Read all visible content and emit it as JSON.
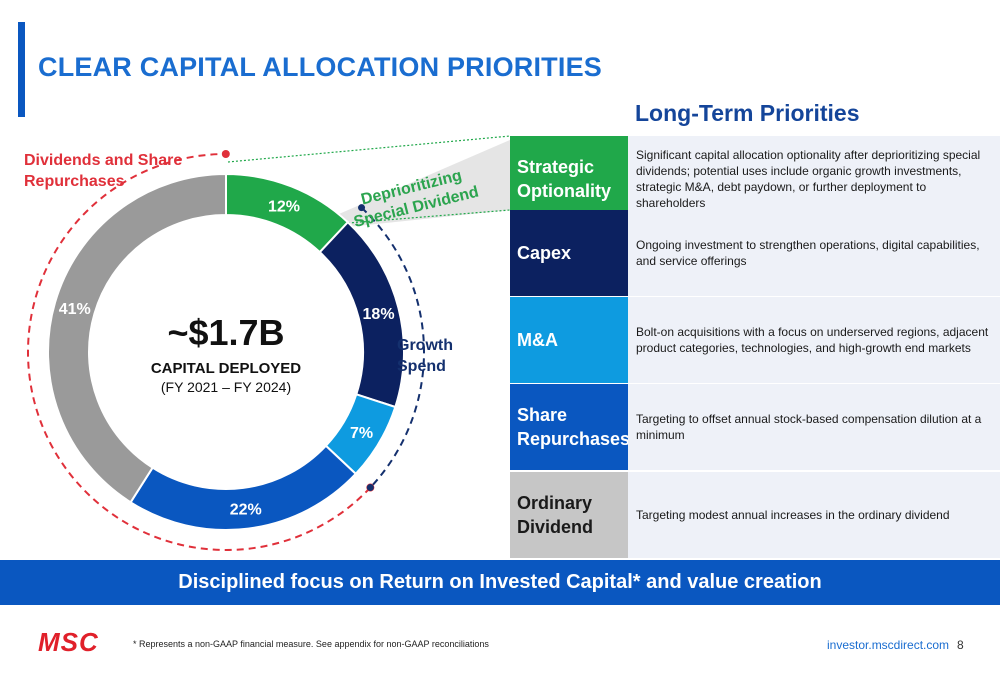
{
  "title": "CLEAR CAPITAL ALLOCATION PRIORITIES",
  "long_term_heading": "Long-Term Priorities",
  "center": {
    "amount": "~$1.7B",
    "label": "CAPITAL DEPLOYED",
    "period": "(FY 2021 – FY 2024)"
  },
  "callouts": {
    "dividends_line1": "Dividends and Share",
    "dividends_line2": "Repurchases",
    "growth_line1": "Growth",
    "growth_line2": "Spend",
    "deprio_line1": "Deprioritizing",
    "deprio_line2": "Special Dividend"
  },
  "priorities": [
    {
      "label": "Strategic Optionality",
      "desc": "Significant capital allocation optionality after deprioritizing special dividends; potential uses include organic growth investments, strategic M&A, debt paydown, or further deployment to shareholders",
      "color": "#20a84a",
      "text_color": "#ffffff"
    },
    {
      "label": "Capex",
      "desc": "Ongoing investment to strengthen operations, digital capabilities, and service offerings",
      "color": "#0c2160",
      "text_color": "#ffffff"
    },
    {
      "label": "M&A",
      "desc": "Bolt-on acquisitions with a focus on underserved regions, adjacent product categories, technologies, and high-growth end markets",
      "color": "#0e9be0",
      "text_color": "#ffffff"
    },
    {
      "label": "Share Repurchases",
      "desc": "Targeting to offset annual stock-based compensation dilution at a minimum",
      "color": "#0a57c0",
      "text_color": "#ffffff"
    },
    {
      "label": "Ordinary Dividend",
      "desc": "Targeting modest annual increases in the ordinary dividend",
      "color": "#c6c6c6",
      "text_color": "#1a1a1a"
    }
  ],
  "banner": "Disciplined focus on Return on Invested Capital* and value creation",
  "footnote": "*   Represents a non-GAAP financial measure. See appendix for non-GAAP reconciliations",
  "logo": "MSC",
  "site": "investor.mscdirect.com",
  "page": "8",
  "chart_data": {
    "type": "pie",
    "variant": "donut",
    "slices": [
      {
        "label": "12%",
        "value": 12,
        "color": "#20a84a",
        "meaning": "Special Dividend"
      },
      {
        "label": "18%",
        "value": 18,
        "color": "#0c2160",
        "meaning": "Capex"
      },
      {
        "label": "7%",
        "value": 7,
        "color": "#0e9be0",
        "meaning": "M&A"
      },
      {
        "label": "22%",
        "value": 22,
        "color": "#0a57c0",
        "meaning": "Share Repurchases"
      },
      {
        "label": "41%",
        "value": 41,
        "color": "#9a9a9a",
        "meaning": "Ordinary Dividend"
      }
    ],
    "accent_red": "#e0303a",
    "accent_navy": "#14306e"
  }
}
